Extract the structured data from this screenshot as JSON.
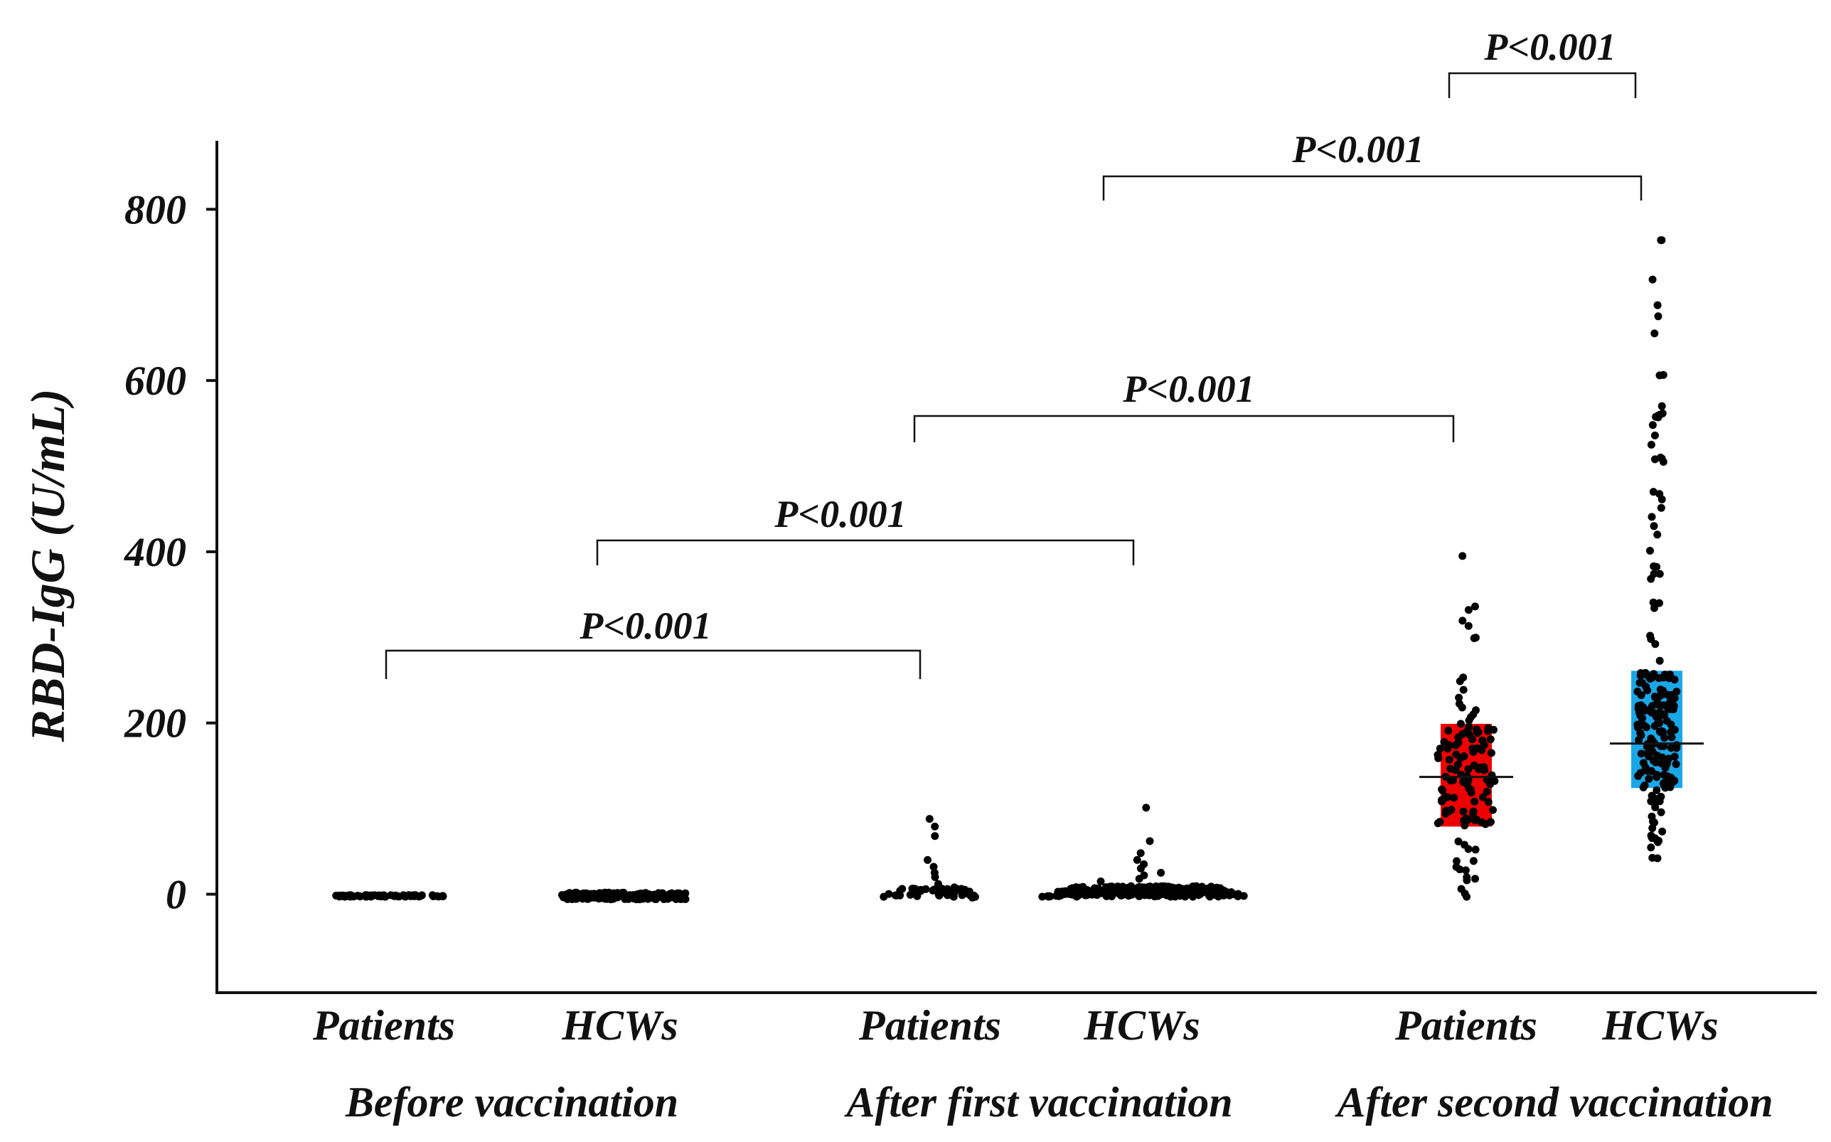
{
  "chart_data": {
    "type": "scatter",
    "title": "",
    "xlabel": "",
    "ylabel": "RBD-IgG (U/mL)",
    "ylim": [
      -115,
      880
    ],
    "yticks": [
      0,
      200,
      400,
      600,
      800
    ],
    "ytick_labels": [
      "0",
      "200",
      "400",
      "600",
      "800"
    ],
    "categories": [
      "Patients",
      "HCWs",
      "Patients",
      "HCWs",
      "Patients",
      "HCWs"
    ],
    "groups": [
      {
        "label": "Before vaccination",
        "categories": [
          0,
          1
        ]
      },
      {
        "label": "After first vaccination",
        "categories": [
          2,
          3
        ]
      },
      {
        "label": "After second vaccination",
        "categories": [
          4,
          5
        ]
      }
    ],
    "series": [
      {
        "category": "Patients",
        "group": "Before vaccination",
        "n": 60,
        "min": -3,
        "max": -1,
        "median": -2
      },
      {
        "category": "HCWs",
        "group": "Before vaccination",
        "n": 200,
        "min": -6,
        "max": 2,
        "median": -3
      },
      {
        "category": "Patients",
        "group": "After first vaccination",
        "n": 60,
        "min": -4,
        "max": 88,
        "median": -1,
        "high_values": [
          88,
          79,
          68,
          40,
          32,
          25,
          20,
          12,
          8
        ]
      },
      {
        "category": "HCWs",
        "group": "After first vaccination",
        "n": 300,
        "min": -3,
        "max": 101,
        "median": 3,
        "high_values": [
          101,
          62,
          48,
          40,
          35,
          30,
          25,
          22,
          18,
          15
        ]
      },
      {
        "category": "Patients",
        "group": "After second vaccination",
        "n": 120,
        "min": -3,
        "max": 395,
        "median": 137,
        "box": [
          79,
          199
        ],
        "box_color": "#ee0000"
      },
      {
        "category": "HCWs",
        "group": "After second vaccination",
        "n": 200,
        "min": 42,
        "max": 764,
        "median": 176,
        "box": [
          124,
          261
        ],
        "box_color": "#1aa7e8",
        "high_values": [
          764,
          718,
          688,
          675,
          655,
          606,
          560,
          548,
          525,
          510,
          505,
          470,
          430,
          420
        ]
      }
    ],
    "significance": [
      {
        "from": 0,
        "to": 2,
        "label": "P<0.001"
      },
      {
        "from": 1,
        "to": 3,
        "label": "P<0.001"
      },
      {
        "from": 2,
        "to": 4,
        "label": "P<0.001"
      },
      {
        "from": 3,
        "to": 5,
        "label": "P<0.001"
      },
      {
        "from": 4,
        "to": 5,
        "label": "P<0.001"
      }
    ],
    "grid": false,
    "legend": "none",
    "point_color": "#000000"
  }
}
